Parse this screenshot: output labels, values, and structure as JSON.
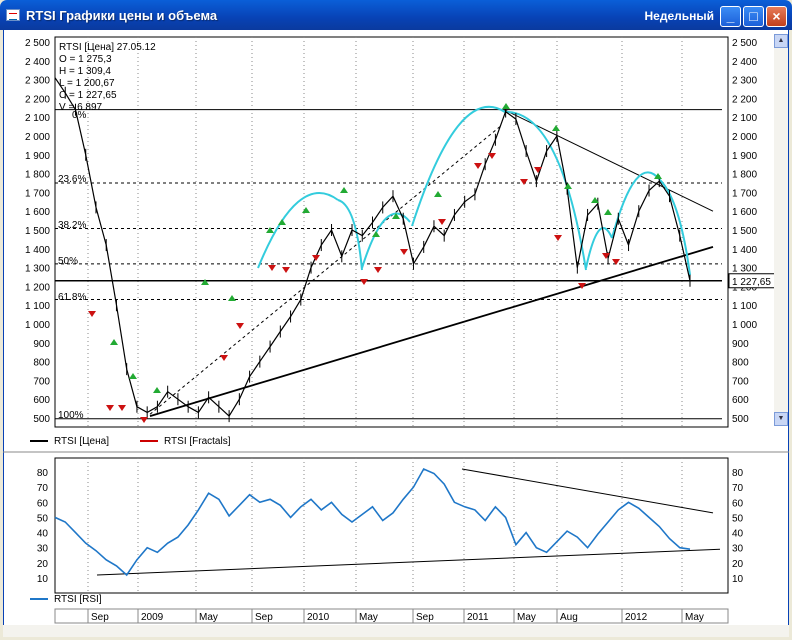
{
  "window": {
    "title": "RTSI Графики цены и объема",
    "period": "Недельный",
    "buttons": {
      "minimize": "_",
      "maximize": "□",
      "close": "×"
    }
  },
  "price_panel": {
    "info_lines": [
      "RTSI [Цена] 27.05.12",
      "O = 1 275,3",
      "H = 1 309,4",
      "L = 1 200,67",
      "C = 1 227,65",
      "V = 6 897"
    ],
    "fib_labels": [
      "0%",
      "23.6%",
      "38.2%",
      "50%",
      "61.8%",
      "100%"
    ],
    "last_price_label": "1 227,65",
    "legend": [
      {
        "label": "RTSI [Цена]",
        "color": "#000000"
      },
      {
        "label": "RTSI [Fractals]",
        "color": "#cc0000"
      }
    ]
  },
  "rsi_panel": {
    "legend": [
      {
        "label": "RTSI [RSI]",
        "color": "#1f77c8"
      }
    ]
  },
  "x_axis_labels": [
    "Sep",
    "2009",
    "May",
    "Sep",
    "2010",
    "May",
    "Sep",
    "2011",
    "May",
    "Aug",
    "2012",
    "May"
  ],
  "colors": {
    "price": "#000000",
    "rsi": "#1f77c8",
    "arc": "#33ccdd",
    "fractal_up": "#22aa33",
    "fractal_down": "#cc1111"
  },
  "chart_data": [
    {
      "type": "line",
      "title": "RTSI [Цена]",
      "y_ticks": [
        "2 500",
        "2 400",
        "2 300",
        "2 200",
        "2 100",
        "2 000",
        "1 900",
        "1 800",
        "1 700",
        "1 600",
        "1 500",
        "1 400",
        "1 300",
        "1 200",
        "1 100",
        "1 000",
        "900",
        "800",
        "700",
        "600",
        "500"
      ],
      "ylim": [
        460,
        2510
      ],
      "x_labels": [
        "Sep",
        "2009",
        "May",
        "Sep",
        "2010",
        "May",
        "Sep",
        "2011",
        "May",
        "Aug",
        "2012",
        "May"
      ],
      "series": [
        {
          "name": "RTSI [Цена]",
          "values": [
            2310,
            2230,
            2140,
            1900,
            1620,
            1420,
            1100,
            760,
            560,
            530,
            560,
            640,
            600,
            560,
            530,
            610,
            560,
            510,
            600,
            720,
            800,
            880,
            960,
            1040,
            1130,
            1300,
            1420,
            1500,
            1360,
            1500,
            1470,
            1540,
            1620,
            1680,
            1560,
            1320,
            1410,
            1520,
            1470,
            1580,
            1650,
            1690,
            1850,
            1980,
            2130,
            2090,
            1920,
            1760,
            1920,
            2000,
            1720,
            1300,
            1580,
            1640,
            1350,
            1560,
            1420,
            1600,
            1710,
            1760,
            1680,
            1470,
            1230
          ]
        }
      ],
      "horizontal_levels": [
        2140,
        1750,
        1508,
        1320,
        1230,
        1130,
        496
      ],
      "fib_levels": {
        "0%": 2140,
        "23.6%": 1750,
        "38.2%": 1508,
        "50%": 1320,
        "61.8%": 1130,
        "100%": 496
      }
    },
    {
      "type": "line",
      "title": "RTSI [RSI]",
      "y_ticks": [
        "80",
        "70",
        "60",
        "50",
        "40",
        "30",
        "20",
        "10"
      ],
      "ylim": [
        5,
        87
      ],
      "x_labels": [
        "Sep",
        "2009",
        "May",
        "Sep",
        "2010",
        "May",
        "Sep",
        "2011",
        "May",
        "Aug",
        "2012",
        "May"
      ],
      "series": [
        {
          "name": "RTSI [RSI]",
          "values": [
            50,
            47,
            40,
            33,
            28,
            22,
            18,
            12,
            22,
            30,
            27,
            33,
            37,
            45,
            55,
            66,
            62,
            51,
            58,
            65,
            60,
            62,
            58,
            50,
            57,
            62,
            55,
            60,
            52,
            47,
            52,
            57,
            48,
            53,
            62,
            70,
            82,
            79,
            72,
            60,
            57,
            55,
            48,
            57,
            50,
            32,
            40,
            30,
            27,
            34,
            41,
            37,
            30,
            39,
            47,
            55,
            60,
            56,
            50,
            44,
            36,
            30,
            29
          ]
        }
      ],
      "trendlines_note": ""
    }
  ]
}
